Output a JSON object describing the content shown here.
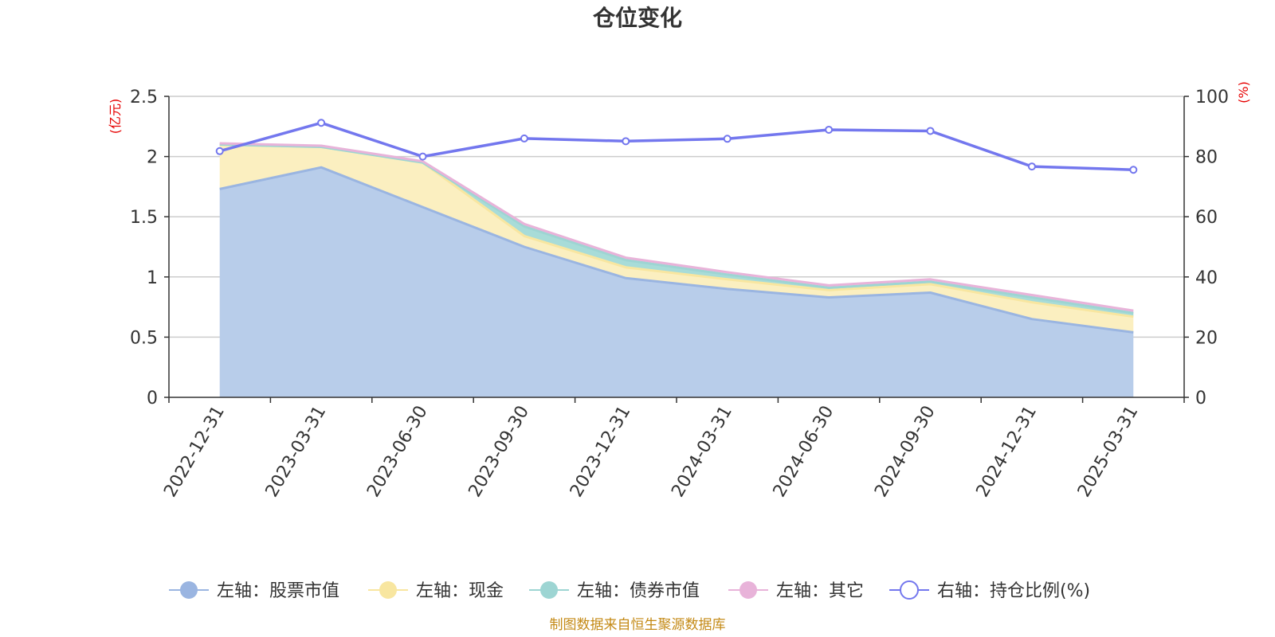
{
  "title": "仓位变化",
  "source": "制图数据来自恒生聚源数据库",
  "chart_data": {
    "type": "area",
    "title": "仓位变化",
    "x": [
      "2022-12-31",
      "2023-03-31",
      "2023-06-30",
      "2023-09-30",
      "2023-12-31",
      "2024-03-31",
      "2024-06-30",
      "2024-09-30",
      "2024-12-31",
      "2025-03-31"
    ],
    "y_left": {
      "unit": "(亿元)",
      "range": [
        0,
        2.5
      ],
      "ticks": [
        "0",
        "0.5",
        "1",
        "1.5",
        "2",
        "2.5"
      ]
    },
    "y_right": {
      "unit": "(%)",
      "range": [
        0,
        100
      ],
      "ticks": [
        "0",
        "20",
        "40",
        "60",
        "80",
        "100"
      ]
    },
    "stacked": true,
    "grid": true,
    "legend_position": "bottom",
    "series": [
      {
        "name": "左轴：股票市值",
        "axis": "left",
        "kind": "area",
        "color": "#9ab5e1",
        "fill": "#b8cdea",
        "values": [
          1.73,
          1.91,
          1.58,
          1.25,
          0.99,
          0.9,
          0.83,
          0.87,
          0.65,
          0.54
        ]
      },
      {
        "name": "左轴：现金",
        "axis": "left",
        "kind": "area",
        "color": "#f8e6a0",
        "fill": "#fbefc0",
        "values": [
          0.37,
          0.17,
          0.37,
          0.09,
          0.09,
          0.08,
          0.06,
          0.07,
          0.14,
          0.13
        ]
      },
      {
        "name": "左轴：债券市值",
        "axis": "left",
        "kind": "area",
        "color": "#9dd5d3",
        "fill": "#a8dcd8",
        "values": [
          0,
          0,
          0,
          0.08,
          0.06,
          0.04,
          0.02,
          0.02,
          0.04,
          0.03
        ]
      },
      {
        "name": "左轴：其它",
        "axis": "left",
        "kind": "area",
        "color": "#e8b3d9",
        "fill": "#f2cde6",
        "values": [
          0.01,
          0.01,
          0.01,
          0.02,
          0.02,
          0.02,
          0.02,
          0.02,
          0.02,
          0.02
        ]
      },
      {
        "name": "右轴：持仓比例(%)",
        "axis": "right",
        "kind": "line",
        "color": "#7377ee",
        "values": [
          81.8,
          91.2,
          80.0,
          86.0,
          85.1,
          85.9,
          88.9,
          88.5,
          76.7,
          75.6
        ]
      }
    ]
  }
}
